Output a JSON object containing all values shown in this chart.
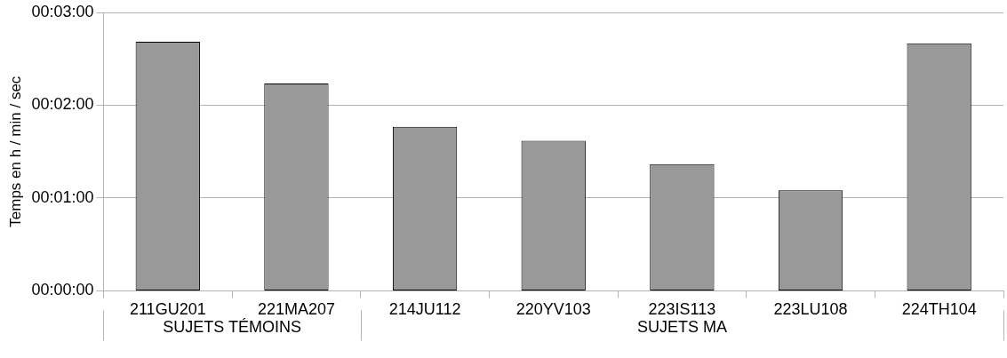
{
  "chart_data": {
    "type": "bar",
    "ylabel": "Temps en h / min / sec",
    "categories": [
      "211GU201",
      "221MA207",
      "214JU112",
      "220YV103",
      "223IS113",
      "223LU108",
      "224TH104"
    ],
    "values": [
      161,
      134,
      106,
      97,
      82,
      65,
      160
    ],
    "color": "#999999",
    "ylim": [
      0,
      180
    ],
    "yticks": [
      {
        "value": 0,
        "label": "00:00:00"
      },
      {
        "value": 60,
        "label": "00:01:00"
      },
      {
        "value": 120,
        "label": "00:02:00"
      },
      {
        "value": 180,
        "label": "00:03:00"
      }
    ],
    "annotations": [
      "SUJETS TÉMOINS",
      "SUJETS MA"
    ],
    "grid": "y"
  }
}
